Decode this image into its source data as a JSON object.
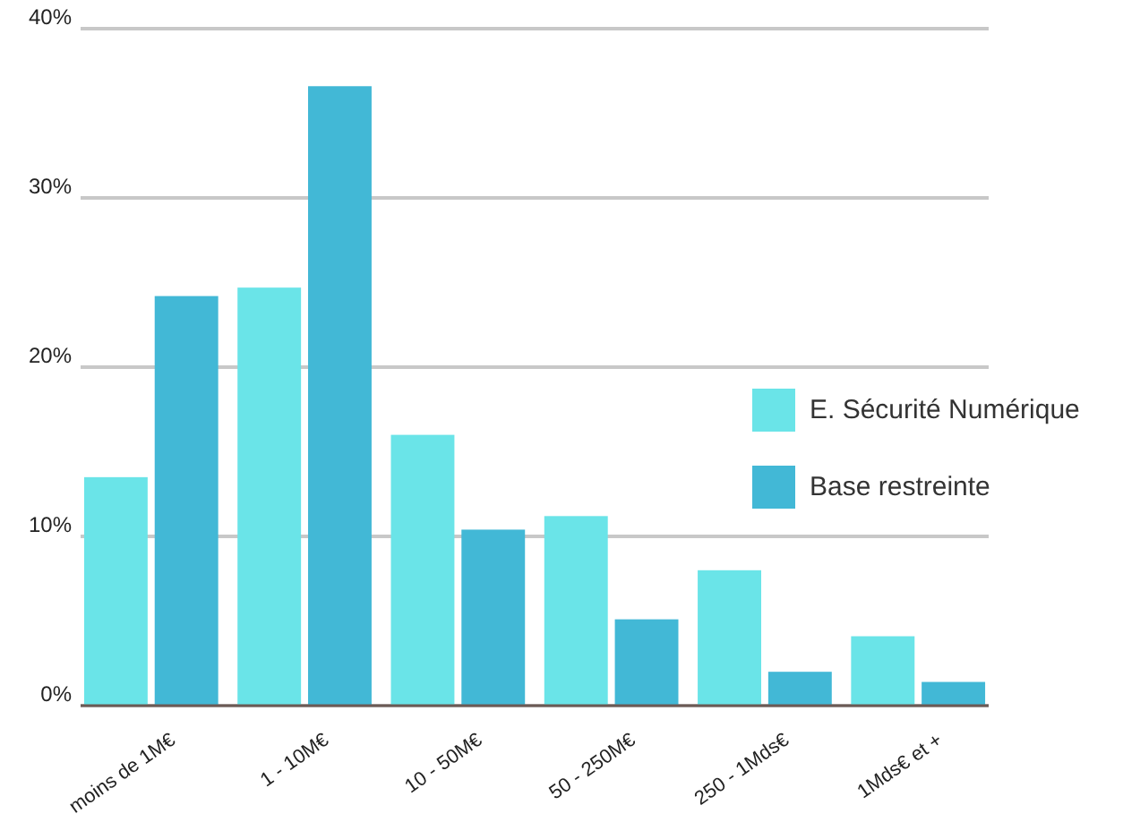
{
  "chart_data": {
    "type": "bar",
    "categories": [
      "moins de 1M€",
      "1 - 10M€",
      "10 - 50M€",
      "50 - 250M€",
      "250 - 1Mds€",
      "1Mds€ et +"
    ],
    "series": [
      {
        "name": "E. Sécurité Numérique",
        "color": "#6ae4e8",
        "values": [
          13.5,
          24.7,
          16.0,
          11.2,
          8.0,
          4.1
        ]
      },
      {
        "name": "Base restreinte",
        "color": "#42b8d6",
        "values": [
          24.2,
          36.6,
          10.4,
          5.1,
          2.0,
          1.4
        ]
      }
    ],
    "ylim": [
      0,
      40
    ],
    "yticks": [
      {
        "value": 0,
        "label": "0%"
      },
      {
        "value": 10,
        "label": "10%"
      },
      {
        "value": 20,
        "label": "20%"
      },
      {
        "value": 30,
        "label": "30%"
      },
      {
        "value": 40,
        "label": "40%"
      }
    ],
    "grid": "y",
    "legend": "right"
  }
}
